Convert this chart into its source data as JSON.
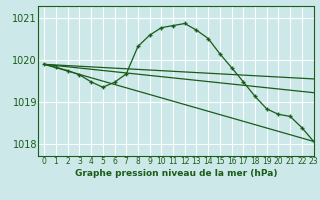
{
  "bg_color": "#cce8e8",
  "grid_color": "#ffffff",
  "line_color": "#1a5c1a",
  "xlabel": "Graphe pression niveau de la mer (hPa)",
  "ylim": [
    1017.7,
    1021.3
  ],
  "xlim": [
    -0.5,
    23
  ],
  "yticks": [
    1018,
    1019,
    1020,
    1021
  ],
  "xticks": [
    0,
    1,
    2,
    3,
    4,
    5,
    6,
    7,
    8,
    9,
    10,
    11,
    12,
    13,
    14,
    15,
    16,
    17,
    18,
    19,
    20,
    21,
    22,
    23
  ],
  "line1": {
    "x": [
      0,
      23
    ],
    "y": [
      1019.9,
      1019.55
    ]
  },
  "line2": {
    "x": [
      0,
      23
    ],
    "y": [
      1019.9,
      1019.22
    ]
  },
  "line3": {
    "x": [
      0,
      23
    ],
    "y": [
      1019.9,
      1018.05
    ]
  },
  "main_x": [
    0,
    1,
    2,
    3,
    4,
    5,
    6,
    7,
    8,
    9,
    10,
    11,
    12,
    13,
    14,
    15,
    16,
    17,
    18,
    19,
    20,
    21,
    22,
    23
  ],
  "main_y": [
    1019.9,
    1019.83,
    1019.75,
    1019.65,
    1019.48,
    1019.35,
    1019.47,
    1019.67,
    1020.33,
    1020.6,
    1020.78,
    1020.83,
    1020.88,
    1020.72,
    1020.52,
    1020.15,
    1019.82,
    1019.48,
    1019.13,
    1018.83,
    1018.7,
    1018.65,
    1018.38,
    1018.05
  ]
}
